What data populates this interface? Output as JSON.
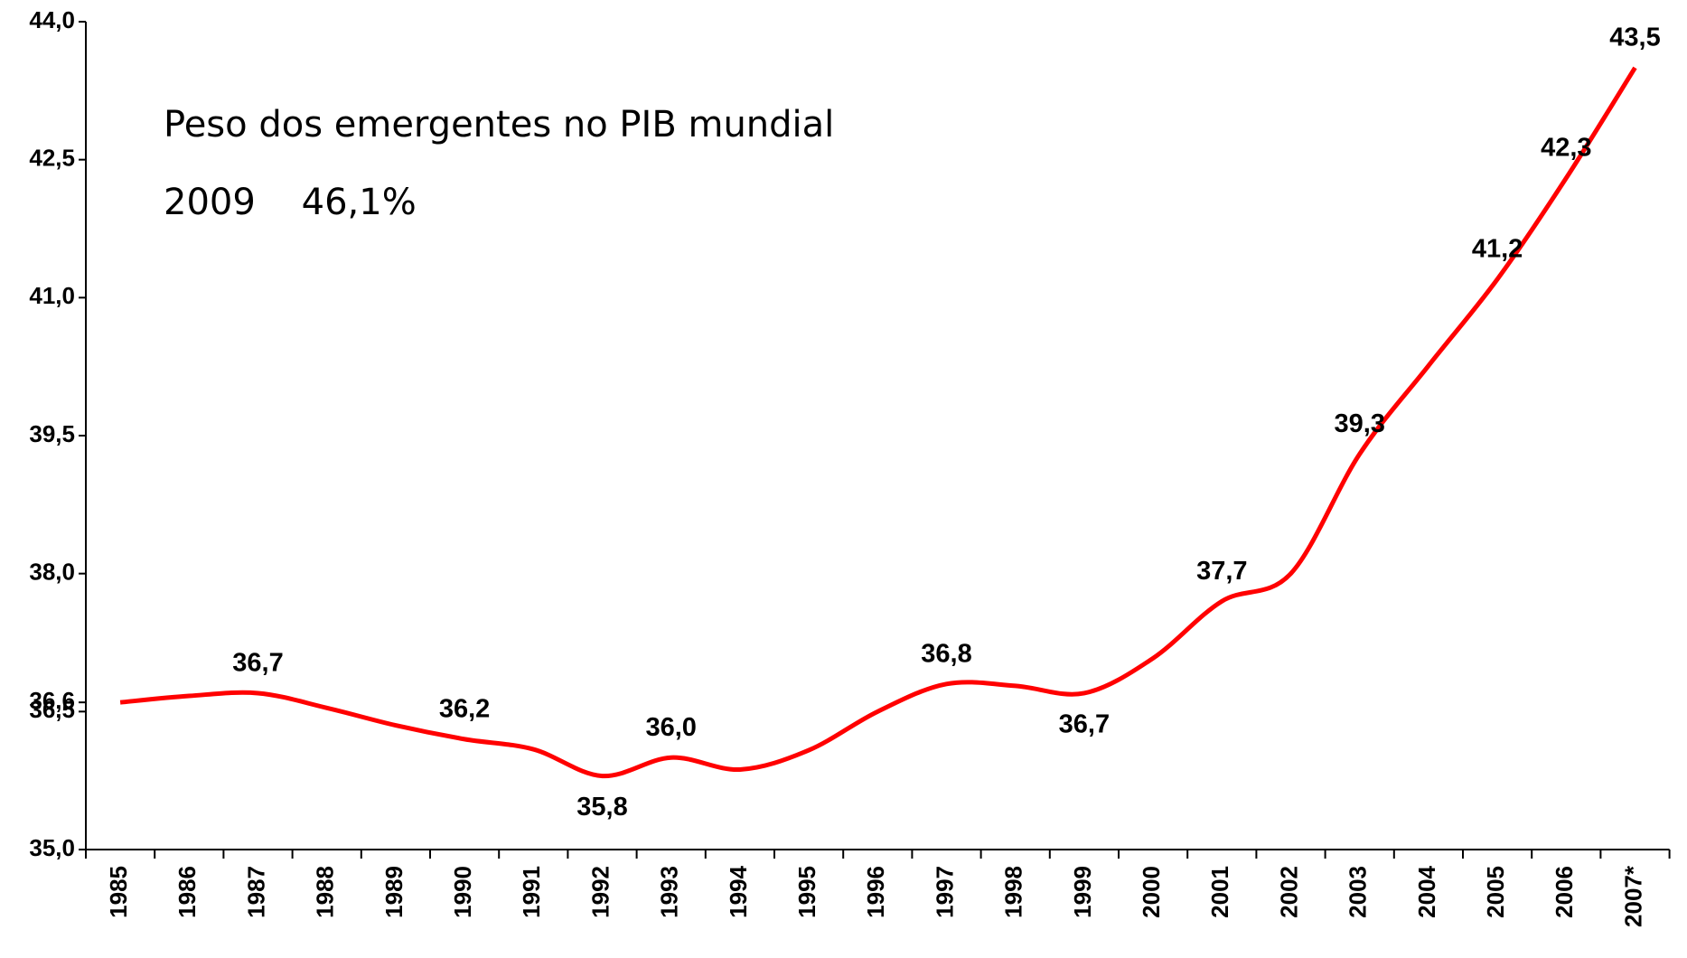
{
  "chart_data": {
    "type": "line",
    "title": "Peso dos emergentes no PIB mundial",
    "annotation": "2009    46,1%",
    "categories": [
      "1985",
      "1986",
      "1987",
      "1988",
      "1989",
      "1990",
      "1991",
      "1992",
      "1993",
      "1994",
      "1995",
      "1996",
      "1997",
      "1998",
      "1999",
      "2000",
      "2001",
      "2002",
      "2003",
      "2004",
      "2005",
      "2006",
      "2007*"
    ],
    "series": [
      {
        "name": "Peso dos emergentes no PIB mundial",
        "color": "#ff0000",
        "values": [
          36.6,
          36.67,
          36.7,
          36.54,
          36.35,
          36.2,
          36.09,
          35.8,
          36.0,
          35.87,
          36.08,
          36.5,
          36.8,
          36.78,
          36.7,
          37.08,
          37.7,
          38.0,
          39.3,
          40.26,
          41.2,
          42.3,
          43.5
        ],
        "value_labels": [
          null,
          null,
          "36,7",
          null,
          null,
          "36,2",
          null,
          "35,8",
          "36,0",
          null,
          null,
          null,
          "36,8",
          null,
          "36,7",
          null,
          "37,7",
          null,
          "39,3",
          null,
          "41,2",
          "42,3",
          "43,5"
        ]
      }
    ],
    "ylim": [
      35.0,
      44.0
    ],
    "yticks": [
      {
        "value": 35.0,
        "label": "35,0"
      },
      {
        "value": 36.5,
        "label": "36,5"
      },
      {
        "value": 36.6,
        "label": "36,6"
      },
      {
        "value": 38.0,
        "label": "38,0"
      },
      {
        "value": 39.5,
        "label": "39,5"
      },
      {
        "value": 41.0,
        "label": "41,0"
      },
      {
        "value": 42.5,
        "label": "42,5"
      },
      {
        "value": 44.0,
        "label": "44,0"
      }
    ],
    "grid": false
  }
}
